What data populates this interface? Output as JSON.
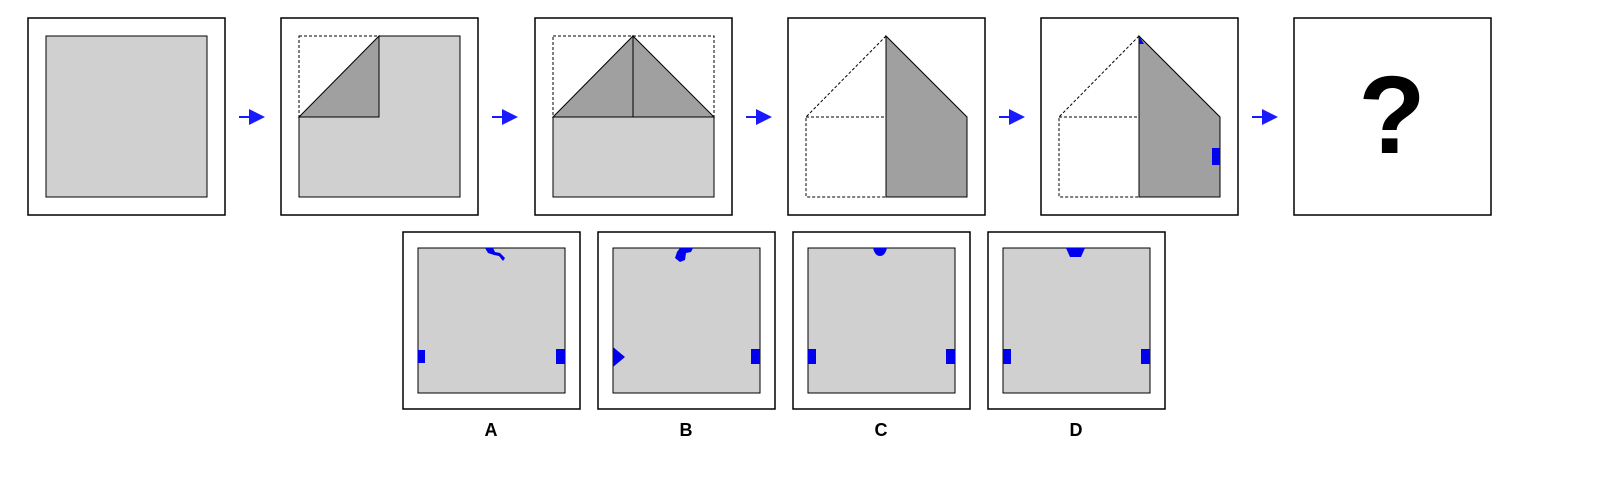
{
  "question_mark": "?",
  "options": [
    {
      "label": "A"
    },
    {
      "label": "B"
    },
    {
      "label": "C"
    },
    {
      "label": "D"
    }
  ]
}
